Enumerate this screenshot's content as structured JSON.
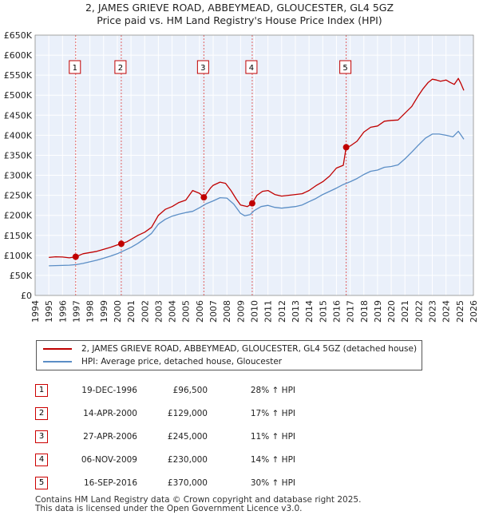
{
  "chart_data": {
    "type": "line",
    "title": "2, JAMES GRIEVE ROAD, ABBEYMEAD, GLOUCESTER, GL4 5GZ",
    "subtitle": "Price paid vs. HM Land Registry's House Price Index (HPI)",
    "xlabel": "",
    "ylabel": "",
    "xlim": [
      1994,
      2026
    ],
    "ylim": [
      0,
      650000
    ],
    "x_ticks": [
      1994,
      1995,
      1996,
      1997,
      1998,
      1999,
      2000,
      2001,
      2002,
      2003,
      2004,
      2005,
      2006,
      2007,
      2008,
      2009,
      2010,
      2011,
      2012,
      2013,
      2014,
      2015,
      2016,
      2017,
      2018,
      2019,
      2020,
      2021,
      2022,
      2023,
      2024,
      2025,
      2026
    ],
    "y_ticks": [
      {
        "value": 0,
        "label": "£0"
      },
      {
        "value": 50000,
        "label": "£50K"
      },
      {
        "value": 100000,
        "label": "£100K"
      },
      {
        "value": 150000,
        "label": "£150K"
      },
      {
        "value": 200000,
        "label": "£200K"
      },
      {
        "value": 250000,
        "label": "£250K"
      },
      {
        "value": 300000,
        "label": "£300K"
      },
      {
        "value": 350000,
        "label": "£350K"
      },
      {
        "value": 400000,
        "label": "£400K"
      },
      {
        "value": 450000,
        "label": "£450K"
      },
      {
        "value": 500000,
        "label": "£500K"
      },
      {
        "value": 550000,
        "label": "£550K"
      },
      {
        "value": 600000,
        "label": "£600K"
      },
      {
        "value": 650000,
        "label": "£650K"
      }
    ],
    "series": [
      {
        "name": "2, JAMES GRIEVE ROAD, ABBEYMEAD, GLOUCESTER, GL4 5GZ (detached house)",
        "color": "#c00000",
        "x": [
          1995,
          1995.5,
          1996,
          1996.5,
          1996.96,
          1997.5,
          1998,
          1998.5,
          1999,
          1999.5,
          2000,
          2000.29,
          2000.7,
          2001,
          2001.5,
          2002,
          2002.5,
          2003,
          2003.5,
          2004,
          2004.5,
          2005,
          2005.5,
          2006,
          2006.32,
          2006.8,
          2007,
          2007.5,
          2007.9,
          2008.3,
          2008.7,
          2009,
          2009.5,
          2009.85,
          2010.2,
          2010.6,
          2011,
          2011.5,
          2012,
          2012.5,
          2013,
          2013.5,
          2014,
          2014.5,
          2015,
          2015.5,
          2016,
          2016.5,
          2016.71,
          2017,
          2017.5,
          2018,
          2018.5,
          2019,
          2019.5,
          2020,
          2020.5,
          2021,
          2021.5,
          2022,
          2022.3,
          2022.7,
          2023,
          2023.3,
          2023.6,
          2024,
          2024.3,
          2024.6,
          2024.9,
          2025.1,
          2025.3
        ],
        "y": [
          95000,
          96500,
          96000,
          94000,
          96500,
          104000,
          107000,
          110000,
          115000,
          120000,
          126000,
          129000,
          134000,
          140000,
          150000,
          158000,
          170000,
          200000,
          215000,
          222000,
          232000,
          238000,
          262000,
          255000,
          245000,
          268000,
          275000,
          283000,
          280000,
          262000,
          240000,
          226000,
          222000,
          230000,
          250000,
          260000,
          262000,
          252000,
          248000,
          250000,
          252000,
          254000,
          262000,
          274000,
          284000,
          298000,
          318000,
          325000,
          370000,
          373000,
          385000,
          408000,
          420000,
          423000,
          435000,
          437000,
          438000,
          455000,
          472000,
          500000,
          515000,
          532000,
          540000,
          538000,
          535000,
          538000,
          532000,
          527000,
          542000,
          528000,
          512000
        ]
      },
      {
        "name": "HPI: Average price, detached house, Gloucester",
        "color": "#5b8ec6",
        "x": [
          1995,
          1995.5,
          1996,
          1996.5,
          1997,
          1997.5,
          1998,
          1998.5,
          1999,
          1999.5,
          2000,
          2000.5,
          2001,
          2001.5,
          2002,
          2002.5,
          2003,
          2003.5,
          2004,
          2004.5,
          2005,
          2005.5,
          2006,
          2006.5,
          2007,
          2007.5,
          2008,
          2008.5,
          2009,
          2009.3,
          2009.7,
          2010,
          2010.5,
          2011,
          2011.5,
          2012,
          2012.5,
          2013,
          2013.5,
          2014,
          2014.5,
          2015,
          2015.5,
          2016,
          2016.5,
          2017,
          2017.5,
          2018,
          2018.5,
          2019,
          2019.5,
          2020,
          2020.5,
          2021,
          2021.5,
          2022,
          2022.5,
          2023,
          2023.5,
          2024,
          2024.5,
          2024.9,
          2025.1,
          2025.3
        ],
        "y": [
          74000,
          74500,
          75000,
          75500,
          77000,
          80000,
          84000,
          88000,
          93000,
          98000,
          104000,
          112000,
          120000,
          130000,
          142000,
          155000,
          178000,
          190000,
          198000,
          203000,
          207000,
          210000,
          219000,
          229000,
          236000,
          244000,
          243000,
          228000,
          205000,
          199000,
          202000,
          212000,
          222000,
          225000,
          220000,
          218000,
          220000,
          222000,
          226000,
          234000,
          242000,
          252000,
          260000,
          268000,
          277000,
          284000,
          292000,
          302000,
          310000,
          313000,
          320000,
          322000,
          326000,
          341000,
          358000,
          376000,
          393000,
          403000,
          403000,
          400000,
          396000,
          410000,
          400000,
          390000
        ]
      }
    ],
    "sales": [
      {
        "label": "1",
        "x": 1996.96,
        "y": 96500
      },
      {
        "label": "2",
        "x": 2000.29,
        "y": 129000
      },
      {
        "label": "3",
        "x": 2006.32,
        "y": 245000
      },
      {
        "label": "4",
        "x": 2009.85,
        "y": 230000
      },
      {
        "label": "5",
        "x": 2016.71,
        "y": 370000
      }
    ],
    "background_color": "#eaf0fa",
    "sale_line_color": "#e06060"
  },
  "legend": {
    "property": "2, JAMES GRIEVE ROAD, ABBEYMEAD, GLOUCESTER, GL4 5GZ (detached house)",
    "hpi": "HPI: Average price, detached house, Gloucester"
  },
  "table": [
    {
      "num": "1",
      "date": "19-DEC-1996",
      "price": "£96,500",
      "hpi": "28% ↑ HPI"
    },
    {
      "num": "2",
      "date": "14-APR-2000",
      "price": "£129,000",
      "hpi": "17% ↑ HPI"
    },
    {
      "num": "3",
      "date": "27-APR-2006",
      "price": "£245,000",
      "hpi": "11% ↑ HPI"
    },
    {
      "num": "4",
      "date": "06-NOV-2009",
      "price": "£230,000",
      "hpi": "14% ↑ HPI"
    },
    {
      "num": "5",
      "date": "16-SEP-2016",
      "price": "£370,000",
      "hpi": "30% ↑ HPI"
    }
  ],
  "footer": {
    "line1": "Contains HM Land Registry data © Crown copyright and database right 2025.",
    "line2": "This data is licensed under the Open Government Licence v3.0."
  }
}
